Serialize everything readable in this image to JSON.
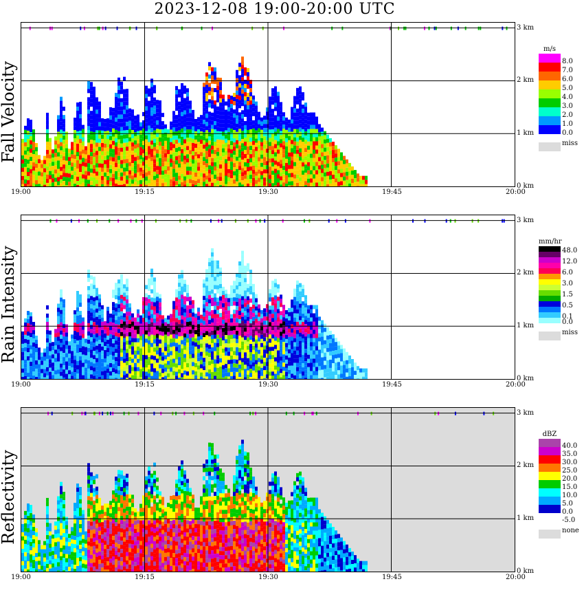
{
  "title": "2023-12-08   19:00-20:00 UTC",
  "time_ticks": [
    "19:00",
    "19:15",
    "19:30",
    "19:45",
    "20:00"
  ],
  "height_ticks": [
    "0 km",
    "1 km",
    "2 km",
    "3 km"
  ],
  "panels": [
    {
      "ylabel": "Fall Velocity",
      "background": "#ffffff",
      "legend": {
        "unit": "m/s",
        "levels": [
          {
            "label": "8.0",
            "color": "#ff00ff"
          },
          {
            "label": "7.0",
            "color": "#ff0000"
          },
          {
            "label": "6.0",
            "color": "#ff6600"
          },
          {
            "label": "5.0",
            "color": "#ffcc00"
          },
          {
            "label": "4.0",
            "color": "#99ff00"
          },
          {
            "label": "3.0",
            "color": "#00cc00"
          },
          {
            "label": "2.0",
            "color": "#00ffcc"
          },
          {
            "label": "1.0",
            "color": "#0099ff"
          },
          {
            "label": "0.0",
            "color": "#0000ff"
          }
        ],
        "missing": {
          "label": "miss",
          "color": "#dcdcdc"
        }
      }
    },
    {
      "ylabel": "Rain Intensity",
      "background": "#ffffff",
      "legend": {
        "unit": "mm/hr",
        "levels": [
          {
            "label": "48.0",
            "color": "#000000"
          },
          {
            "label": "",
            "color": "#660066"
          },
          {
            "label": "12.0",
            "color": "#cc00cc"
          },
          {
            "label": "",
            "color": "#ff00aa"
          },
          {
            "label": "6.0",
            "color": "#ff0055"
          },
          {
            "label": "",
            "color": "#ff9900"
          },
          {
            "label": "3.0",
            "color": "#ffff00"
          },
          {
            "label": "",
            "color": "#ccff33"
          },
          {
            "label": "1.5",
            "color": "#66dd00"
          },
          {
            "label": "",
            "color": "#00aa00"
          },
          {
            "label": "0.5",
            "color": "#0000dd"
          },
          {
            "label": "",
            "color": "#0077ff"
          },
          {
            "label": "0.1",
            "color": "#33ccff"
          },
          {
            "label": "0.0",
            "color": "#99ffff"
          }
        ],
        "missing": {
          "label": "miss",
          "color": "#dcdcdc"
        }
      }
    },
    {
      "ylabel": "Reflectivity",
      "background": "#dcdcdc",
      "legend": {
        "unit": "dBZ",
        "levels": [
          {
            "label": "40.0",
            "color": "#aa44aa"
          },
          {
            "label": "35.0",
            "color": "#cc00cc"
          },
          {
            "label": "30.0",
            "color": "#ff0000"
          },
          {
            "label": "25.0",
            "color": "#ff7700"
          },
          {
            "label": "20.0",
            "color": "#ffff00"
          },
          {
            "label": "15.0",
            "color": "#00cc00"
          },
          {
            "label": "10.0",
            "color": "#00ffff"
          },
          {
            "label": "5.0",
            "color": "#00aaff"
          },
          {
            "label": "0.0",
            "color": "#0000cc"
          },
          {
            "label": "-5.0",
            "color": "#ffffff"
          }
        ],
        "missing": {
          "label": "none",
          "color": "#dcdcdc"
        }
      }
    }
  ],
  "chart_data": {
    "type": "heatmap",
    "title": "2023-12-08   19:00-20:00 UTC",
    "x_axis": {
      "range": [
        "19:00",
        "20:00"
      ],
      "ticks": [
        "19:00",
        "19:15",
        "19:30",
        "19:45",
        "20:00"
      ]
    },
    "y_axis": {
      "unit": "km",
      "range": [
        0,
        3
      ],
      "ticks": [
        0,
        1,
        2,
        3
      ]
    },
    "grid": true,
    "layers": [
      "Fall Velocity",
      "Rain Intensity",
      "Reflectivity"
    ],
    "echo_extent": {
      "start": "19:00",
      "end": "19:42",
      "max_height_km": 2.2,
      "melting_layer_km": 1.0
    },
    "colors": {
      "fall_velocity": [
        "#0000ff",
        "#00cc00",
        "#ffcc00",
        "#ff6600",
        "#ff0000",
        "#ff00ff"
      ],
      "rain_intensity": [
        "#99ffff",
        "#0077ff",
        "#00aa00",
        "#ffff00",
        "#ff0055",
        "#cc00cc",
        "#000000"
      ],
      "reflectivity": [
        "#00aaff",
        "#00cc00",
        "#ffff00",
        "#ff7700",
        "#ff0000",
        "#cc00cc"
      ]
    }
  }
}
